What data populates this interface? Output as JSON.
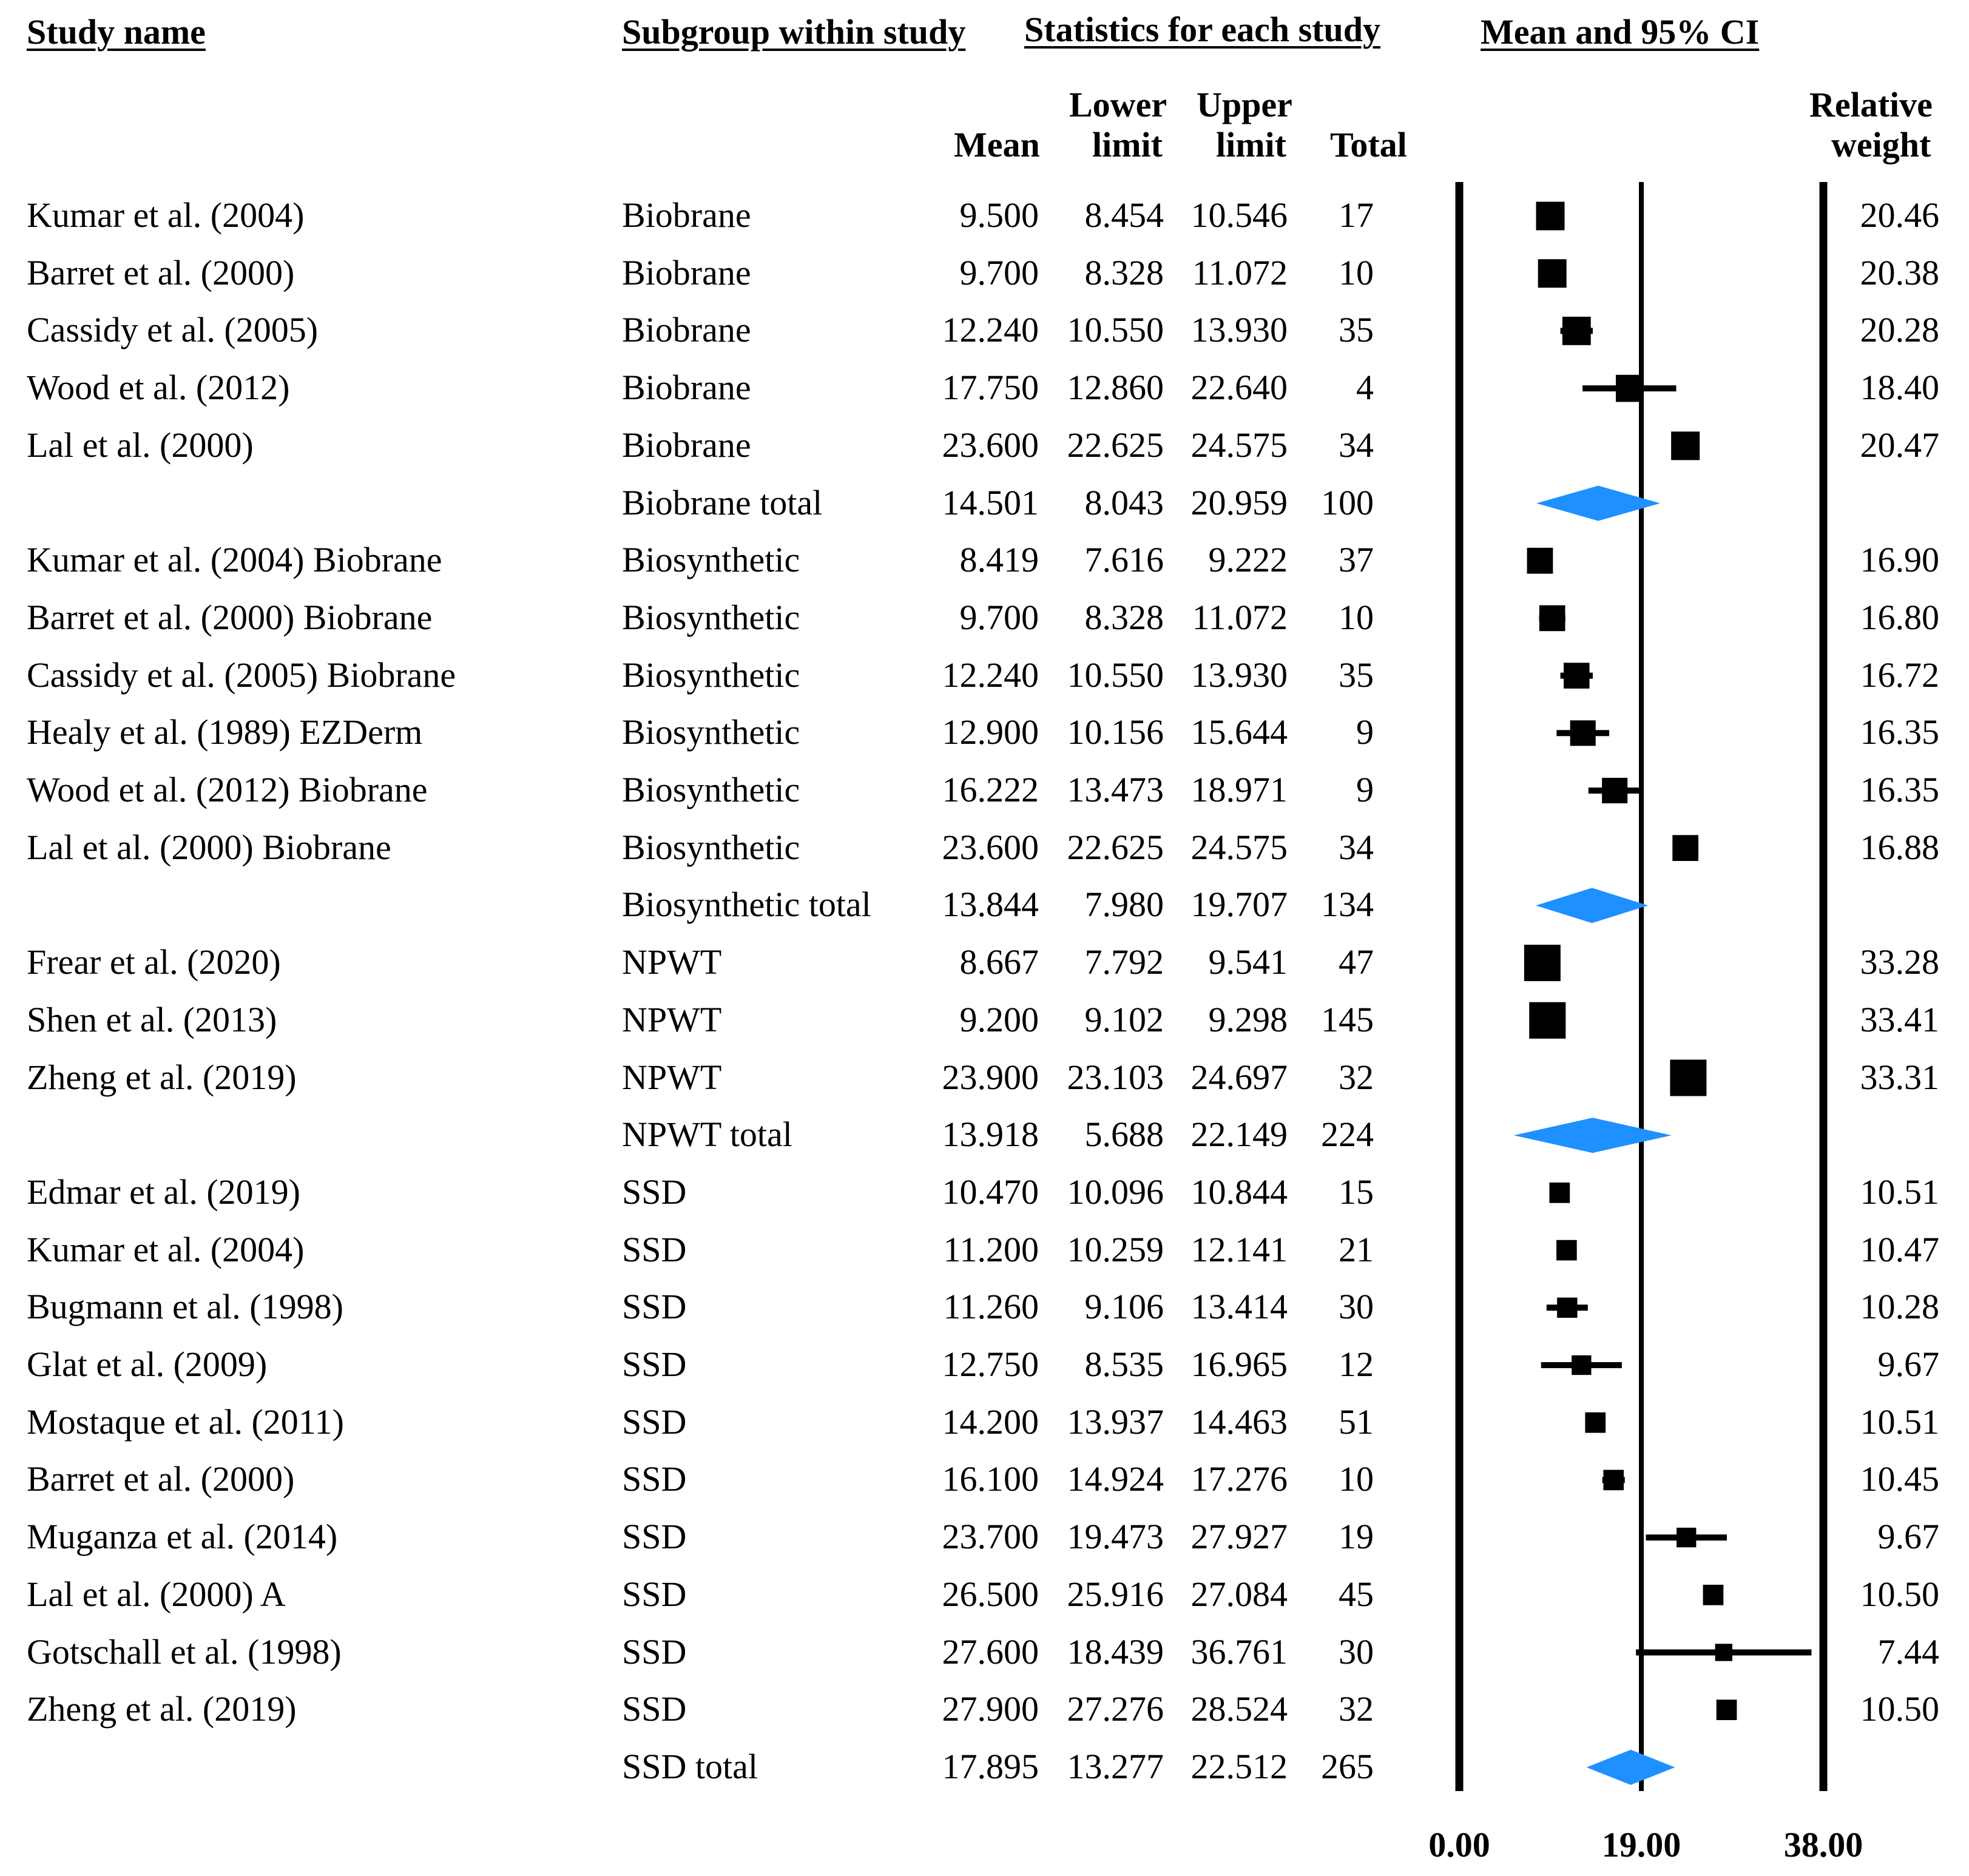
{
  "headers": {
    "study_name": "Study name",
    "subgroup": "Subgroup within study",
    "statistics": "Statistics for each study",
    "mean_ci": "Mean and 95% CI",
    "mean": "Mean",
    "lower_1": "Lower",
    "lower_2": "limit",
    "upper_1": "Upper",
    "upper_2": "limit",
    "total": "Total",
    "weight_1": "Relative",
    "weight_2": "weight"
  },
  "colors": {
    "marker": "#000000",
    "diamond": "#1E90FF"
  },
  "chart_data": {
    "type": "forest",
    "xlim": [
      0,
      38
    ],
    "ticks": [
      "0.00",
      "19.00",
      "38.00"
    ],
    "tick_values": [
      0,
      19,
      38
    ],
    "rows": [
      {
        "study": "Kumar et al. (2004)",
        "subgroup": "Biobrane",
        "mean": "9.500",
        "lower": "8.454",
        "upper": "10.546",
        "total": "17",
        "weight": "20.46",
        "kind": "study"
      },
      {
        "study": "Barret et al. (2000)",
        "subgroup": "Biobrane",
        "mean": "9.700",
        "lower": "8.328",
        "upper": "11.072",
        "total": "10",
        "weight": "20.38",
        "kind": "study"
      },
      {
        "study": "Cassidy et al. (2005)",
        "subgroup": "Biobrane",
        "mean": "12.240",
        "lower": "10.550",
        "upper": "13.930",
        "total": "35",
        "weight": "20.28",
        "kind": "study"
      },
      {
        "study": "Wood et al. (2012)",
        "subgroup": "Biobrane",
        "mean": "17.750",
        "lower": "12.860",
        "upper": "22.640",
        "total": "4",
        "weight": "18.40",
        "kind": "study"
      },
      {
        "study": "Lal et al. (2000)",
        "subgroup": "Biobrane",
        "mean": "23.600",
        "lower": "22.625",
        "upper": "24.575",
        "total": "34",
        "weight": "20.47",
        "kind": "study"
      },
      {
        "study": "",
        "subgroup": "Biobrane total",
        "mean": "14.501",
        "lower": "8.043",
        "upper": "20.959",
        "total": "100",
        "weight": "",
        "kind": "total"
      },
      {
        "study": "Kumar et al. (2004) Biobrane",
        "subgroup": "Biosynthetic",
        "mean": "8.419",
        "lower": "7.616",
        "upper": "9.222",
        "total": "37",
        "weight": "16.90",
        "kind": "study"
      },
      {
        "study": "Barret et al. (2000) Biobrane",
        "subgroup": "Biosynthetic",
        "mean": "9.700",
        "lower": "8.328",
        "upper": "11.072",
        "total": "10",
        "weight": "16.80",
        "kind": "study"
      },
      {
        "study": "Cassidy et al. (2005) Biobrane",
        "subgroup": "Biosynthetic",
        "mean": "12.240",
        "lower": "10.550",
        "upper": "13.930",
        "total": "35",
        "weight": "16.72",
        "kind": "study"
      },
      {
        "study": "Healy et al. (1989) EZDerm",
        "subgroup": "Biosynthetic",
        "mean": "12.900",
        "lower": "10.156",
        "upper": "15.644",
        "total": "9",
        "weight": "16.35",
        "kind": "study"
      },
      {
        "study": "Wood et al. (2012) Biobrane",
        "subgroup": "Biosynthetic",
        "mean": "16.222",
        "lower": "13.473",
        "upper": "18.971",
        "total": "9",
        "weight": "16.35",
        "kind": "study"
      },
      {
        "study": "Lal et al. (2000) Biobrane",
        "subgroup": "Biosynthetic",
        "mean": "23.600",
        "lower": "22.625",
        "upper": "24.575",
        "total": "34",
        "weight": "16.88",
        "kind": "study"
      },
      {
        "study": "",
        "subgroup": "Biosynthetic total",
        "mean": "13.844",
        "lower": "7.980",
        "upper": "19.707",
        "total": "134",
        "weight": "",
        "kind": "total"
      },
      {
        "study": "Frear et al. (2020)",
        "subgroup": "NPWT",
        "mean": "8.667",
        "lower": "7.792",
        "upper": "9.541",
        "total": "47",
        "weight": "33.28",
        "kind": "study"
      },
      {
        "study": "Shen et al. (2013)",
        "subgroup": "NPWT",
        "mean": "9.200",
        "lower": "9.102",
        "upper": "9.298",
        "total": "145",
        "weight": "33.41",
        "kind": "study"
      },
      {
        "study": "Zheng et al. (2019)",
        "subgroup": "NPWT",
        "mean": "23.900",
        "lower": "23.103",
        "upper": "24.697",
        "total": "32",
        "weight": "33.31",
        "kind": "study"
      },
      {
        "study": "",
        "subgroup": "NPWT total",
        "mean": "13.918",
        "lower": "5.688",
        "upper": "22.149",
        "total": "224",
        "weight": "",
        "kind": "total"
      },
      {
        "study": "Edmar et al. (2019)",
        "subgroup": "SSD",
        "mean": "10.470",
        "lower": "10.096",
        "upper": "10.844",
        "total": "15",
        "weight": "10.51",
        "kind": "study"
      },
      {
        "study": "Kumar et al. (2004)",
        "subgroup": "SSD",
        "mean": "11.200",
        "lower": "10.259",
        "upper": "12.141",
        "total": "21",
        "weight": "10.47",
        "kind": "study"
      },
      {
        "study": "Bugmann et al. (1998)",
        "subgroup": "SSD",
        "mean": "11.260",
        "lower": "9.106",
        "upper": "13.414",
        "total": "30",
        "weight": "10.28",
        "kind": "study"
      },
      {
        "study": "Glat et al. (2009)",
        "subgroup": "SSD",
        "mean": "12.750",
        "lower": "8.535",
        "upper": "16.965",
        "total": "12",
        "weight": "9.67",
        "kind": "study"
      },
      {
        "study": "Mostaque et al. (2011)",
        "subgroup": "SSD",
        "mean": "14.200",
        "lower": "13.937",
        "upper": "14.463",
        "total": "51",
        "weight": "10.51",
        "kind": "study"
      },
      {
        "study": "Barret et al. (2000)",
        "subgroup": "SSD",
        "mean": "16.100",
        "lower": "14.924",
        "upper": "17.276",
        "total": "10",
        "weight": "10.45",
        "kind": "study"
      },
      {
        "study": "Muganza et al. (2014)",
        "subgroup": "SSD",
        "mean": "23.700",
        "lower": "19.473",
        "upper": "27.927",
        "total": "19",
        "weight": "9.67",
        "kind": "study"
      },
      {
        "study": "Lal et al. (2000) A",
        "subgroup": "SSD",
        "mean": "26.500",
        "lower": "25.916",
        "upper": "27.084",
        "total": "45",
        "weight": "10.50",
        "kind": "study"
      },
      {
        "study": "Gotschall et al. (1998)",
        "subgroup": "SSD",
        "mean": "27.600",
        "lower": "18.439",
        "upper": "36.761",
        "total": "30",
        "weight": "7.44",
        "kind": "study"
      },
      {
        "study": "Zheng et al. (2019)",
        "subgroup": "SSD",
        "mean": "27.900",
        "lower": "27.276",
        "upper": "28.524",
        "total": "32",
        "weight": "10.50",
        "kind": "study"
      },
      {
        "study": "",
        "subgroup": "SSD total",
        "mean": "17.895",
        "lower": "13.277",
        "upper": "22.512",
        "total": "265",
        "weight": "",
        "kind": "total"
      }
    ]
  }
}
